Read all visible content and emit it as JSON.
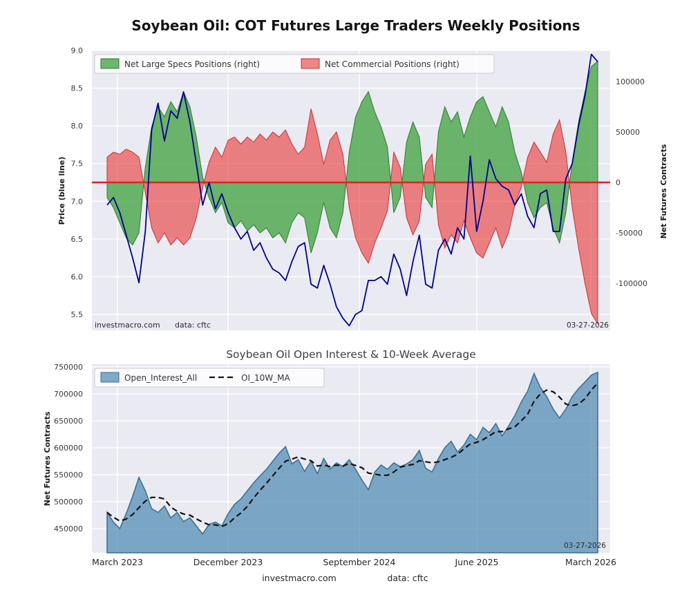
{
  "colors": {
    "page_bg": "#ffffff",
    "plot_bg": "#eaeaf2",
    "grid": "#ffffff",
    "specs_green": "#44a344",
    "specs_green_edge": "#2d7a2d",
    "commercial_red": "#e83c3c",
    "commercial_red_edge": "#c92f2f",
    "zero_line": "#dd2222",
    "price_blue": "#00008b",
    "oi_fill": "#4c87b0",
    "oi_edge": "#366d94",
    "ma_black": "#111111"
  },
  "footer": {
    "site": "investmacro.com",
    "source": "data: cftc"
  },
  "chart_data": [
    {
      "type": "area",
      "title": "Soybean Oil: COT Futures Large Traders Weekly Positions",
      "ylabel_left": "Price (blue line)",
      "ylabel_right": "Net Futures Contracts",
      "ylim_left": [
        5.29,
        9.0
      ],
      "ylim_right": [
        -146000,
        131000
      ],
      "grid": true,
      "legend_position": "upper left",
      "axis_left": {
        "ticks": [
          9.0,
          8.5,
          8.0,
          7.5,
          7.0,
          6.5,
          6.0,
          5.5
        ],
        "labels": [
          "9.0",
          "8.5",
          "8.0",
          "7.5",
          "7.0",
          "6.5",
          "6.0",
          "5.5"
        ]
      },
      "axis_right": {
        "ticks": [
          100000,
          50000,
          0,
          -50000,
          -100000
        ],
        "labels": [
          "100000",
          "50000",
          "0",
          "-50000",
          "-100000"
        ]
      },
      "legend": [
        {
          "label": "Net Large Specs Positions (right)",
          "color": "#44a344"
        },
        {
          "label": "Net Commercial Positions (right)",
          "color": "#e83c3c"
        }
      ],
      "annotations": {
        "watermark": "investmacro.com",
        "source": "data: cftc",
        "date": "03-27-2026"
      },
      "x_range": [
        "March 2023",
        "March 2026"
      ],
      "series": [
        {
          "name": "Net Large Specs Positions",
          "axis": "right",
          "style": "area",
          "color": "#44a344",
          "values": [
            -15000,
            -25000,
            -40000,
            -55000,
            -62000,
            -50000,
            15000,
            55000,
            75000,
            65000,
            80000,
            70000,
            90000,
            75000,
            45000,
            5000,
            -15000,
            -30000,
            -20000,
            -40000,
            -45000,
            -38000,
            -48000,
            -42000,
            -50000,
            -45000,
            -55000,
            -50000,
            -60000,
            -40000,
            -30000,
            -35000,
            -70000,
            -50000,
            -20000,
            -45000,
            -55000,
            -30000,
            30000,
            65000,
            80000,
            90000,
            70000,
            55000,
            35000,
            -30000,
            -15000,
            40000,
            60000,
            45000,
            -15000,
            -25000,
            50000,
            75000,
            60000,
            70000,
            45000,
            65000,
            80000,
            85000,
            70000,
            55000,
            75000,
            60000,
            30000,
            10000,
            -20000,
            -35000,
            -25000,
            -20000,
            -45000,
            -60000,
            -30000,
            20000,
            60000,
            90000,
            115000,
            120000
          ]
        },
        {
          "name": "Net Commercial Positions",
          "axis": "right",
          "style": "area",
          "color": "#e83c3c",
          "values": [
            25000,
            30000,
            28000,
            33000,
            30000,
            25000,
            -10000,
            -45000,
            -60000,
            -50000,
            -62000,
            -55000,
            -62000,
            -55000,
            -35000,
            -5000,
            20000,
            35000,
            25000,
            42000,
            45000,
            38000,
            45000,
            40000,
            48000,
            42000,
            50000,
            45000,
            52000,
            38000,
            28000,
            35000,
            73000,
            48000,
            18000,
            42000,
            50000,
            28000,
            -25000,
            -55000,
            -70000,
            -80000,
            -60000,
            -45000,
            -28000,
            30000,
            15000,
            -35000,
            -52000,
            -38000,
            18000,
            28000,
            -42000,
            -65000,
            -52000,
            -60000,
            -38000,
            -55000,
            -70000,
            -75000,
            -60000,
            -45000,
            -65000,
            -50000,
            -22000,
            -5000,
            25000,
            40000,
            30000,
            20000,
            48000,
            62000,
            30000,
            -25000,
            -65000,
            -100000,
            -130000,
            -140000
          ]
        },
        {
          "name": "Price",
          "axis": "left",
          "style": "line",
          "color": "#00008b",
          "values": [
            6.95,
            7.05,
            6.85,
            6.55,
            6.25,
            5.92,
            6.6,
            7.95,
            8.3,
            7.8,
            8.2,
            8.1,
            8.45,
            8.05,
            7.5,
            6.95,
            7.25,
            6.9,
            7.1,
            6.85,
            6.65,
            6.5,
            6.6,
            6.35,
            6.45,
            6.25,
            6.1,
            6.05,
            5.95,
            6.2,
            6.4,
            6.45,
            5.9,
            5.85,
            6.15,
            5.9,
            5.6,
            5.45,
            5.35,
            5.5,
            5.55,
            5.95,
            5.95,
            6.0,
            5.9,
            6.3,
            6.1,
            5.75,
            6.2,
            6.55,
            5.9,
            5.85,
            6.35,
            6.5,
            6.3,
            6.65,
            6.5,
            7.6,
            6.6,
            7.0,
            7.55,
            7.3,
            7.2,
            7.15,
            6.95,
            7.1,
            6.8,
            6.65,
            7.1,
            7.15,
            6.6,
            6.6,
            7.3,
            7.5,
            8.0,
            8.4,
            8.95,
            8.85
          ]
        }
      ]
    },
    {
      "type": "area",
      "title": "Soybean Oil Open Interest & 10-Week Average",
      "ylabel": "Net Futures Contracts",
      "ylim": [
        405000,
        755000
      ],
      "grid": true,
      "legend_position": "upper left",
      "axis_left": {
        "ticks": [
          750000,
          700000,
          650000,
          600000,
          550000,
          500000,
          450000
        ],
        "labels": [
          "750000",
          "700000",
          "650000",
          "600000",
          "550000",
          "500000",
          "450000"
        ]
      },
      "xticks": {
        "labels": [
          "March 2023",
          "December 2023",
          "September 2024",
          "June 2025",
          "March 2026"
        ]
      },
      "legend": [
        {
          "label": "Open_Interest_All",
          "color": "#4c87b0"
        },
        {
          "label": "OI_10W_MA",
          "color": "#111111"
        }
      ],
      "annotations": {
        "date": "03-27-2026"
      },
      "series": [
        {
          "name": "Open_Interest_All",
          "style": "area",
          "color": "#4c87b0",
          "values": [
            480000,
            462000,
            450000,
            478000,
            510000,
            545000,
            520000,
            487000,
            480000,
            492000,
            470000,
            480000,
            463000,
            470000,
            455000,
            440000,
            458000,
            462000,
            455000,
            478000,
            495000,
            505000,
            520000,
            535000,
            548000,
            560000,
            575000,
            590000,
            602000,
            570000,
            578000,
            556000,
            575000,
            552000,
            580000,
            560000,
            572000,
            565000,
            578000,
            560000,
            540000,
            522000,
            555000,
            568000,
            560000,
            572000,
            565000,
            570000,
            578000,
            595000,
            562000,
            555000,
            580000,
            600000,
            612000,
            592000,
            605000,
            625000,
            615000,
            638000,
            628000,
            645000,
            622000,
            640000,
            660000,
            685000,
            705000,
            738000,
            712000,
            695000,
            672000,
            655000,
            672000,
            695000,
            710000,
            722000,
            735000,
            740000
          ]
        },
        {
          "name": "OI_10W_MA",
          "style": "dashed-line",
          "color": "#111111",
          "values": [
            480000,
            471000,
            464000,
            468000,
            476000,
            489000,
            501000,
            508000,
            508000,
            505000,
            490000,
            482000,
            477000,
            475000,
            468000,
            462000,
            457000,
            457000,
            454000,
            459000,
            470000,
            479000,
            491000,
            507000,
            521000,
            534000,
            548000,
            562000,
            575000,
            579000,
            583000,
            579000,
            576000,
            566000,
            568000,
            565000,
            568000,
            566000,
            571000,
            567000,
            563000,
            553000,
            551000,
            549000,
            549000,
            555000,
            564000,
            567000,
            569000,
            576000,
            574000,
            572000,
            574000,
            578000,
            582000,
            588000,
            598000,
            607000,
            610000,
            615000,
            622000,
            630000,
            630000,
            635000,
            639000,
            650000,
            662000,
            686000,
            700000,
            707000,
            704000,
            694000,
            681000,
            678000,
            681000,
            691000,
            707000,
            720000
          ]
        }
      ]
    }
  ]
}
